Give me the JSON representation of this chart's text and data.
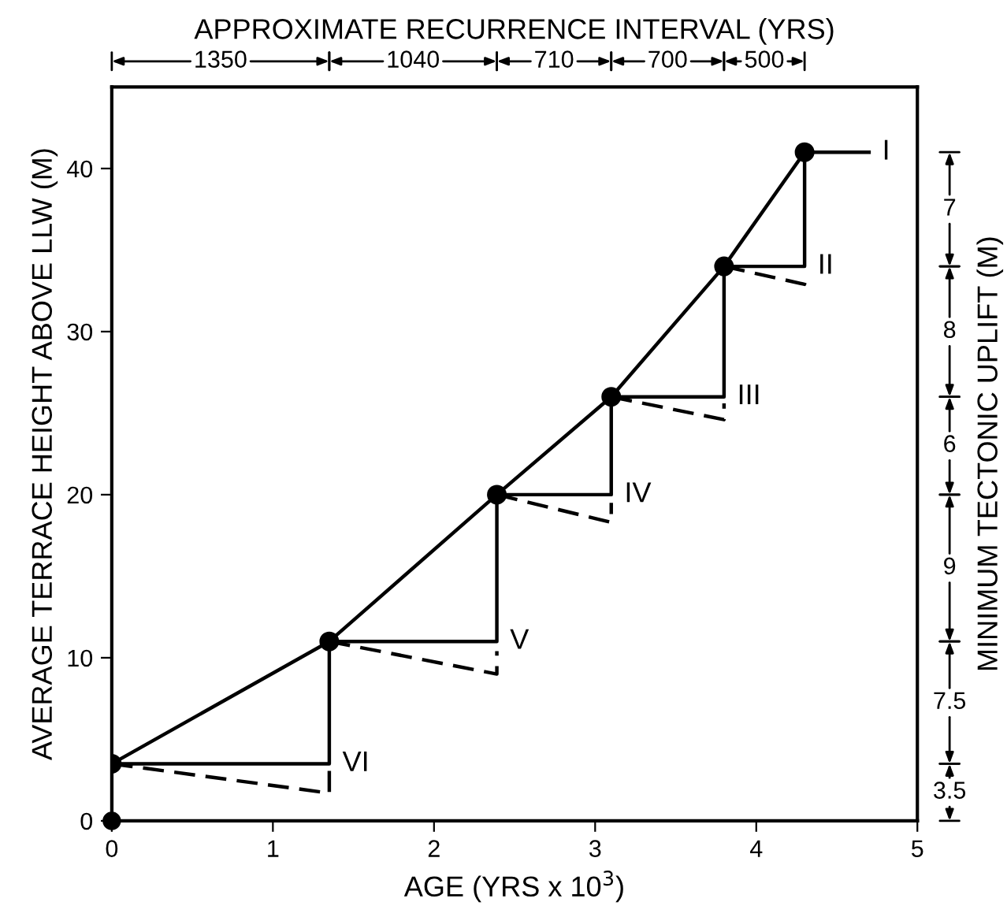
{
  "chart_data": {
    "type": "line",
    "xlabel": "AGE (YRS x 10$^{3}$)",
    "ylabel": "AVERAGE TERRACE HEIGHT ABOVE LLW (M)",
    "x2label": "APPROXIMATE RECURRENCE INTERVAL (YRS)",
    "y2label": "MINIMUM TECTONIC UPLIFT (M)",
    "xlim": [
      0,
      5
    ],
    "xticks": [
      0,
      1,
      2,
      3,
      4,
      5
    ],
    "ylim": [
      0,
      45
    ],
    "yticks": [
      0,
      10,
      20,
      30,
      40
    ],
    "series": [
      {
        "color": "#000000",
        "line_style": "solid",
        "marker": "circle",
        "x": [
          0,
          1.35,
          2.39,
          3.1,
          3.8,
          4.3
        ],
        "values": [
          3.5,
          11,
          20,
          26,
          34,
          41
        ]
      },
      {
        "type": "scatter",
        "color": "#000000",
        "marker": "circle",
        "x": [
          0
        ],
        "values": [
          0
        ]
      },
      {
        "color": "#000000",
        "line_style": "solid",
        "marker": "none",
        "x": [
          0,
          0,
          1.35,
          1.35,
          2.39,
          2.39,
          3.1,
          3.1,
          3.8,
          3.8,
          4.3,
          4.3,
          4.7
        ],
        "values": [
          0,
          3.5,
          3.5,
          11,
          11,
          20,
          20,
          26,
          26,
          34,
          34,
          41,
          41
        ]
      },
      {
        "color": "#000000",
        "line_style": "dashed",
        "marker": "none",
        "x": [
          0,
          1.35,
          1.35,
          null,
          1.35,
          2.39,
          2.39,
          null,
          2.39,
          3.1,
          3.1,
          null,
          3.1,
          3.8,
          3.8,
          null,
          3.8,
          4.3,
          4.3
        ],
        "values": [
          3.5,
          1.7,
          3.1,
          null,
          11,
          9.0,
          10.4,
          null,
          20,
          18.3,
          19.5,
          null,
          26,
          24.6,
          25.6,
          null,
          34,
          32.9,
          33.6
        ]
      }
    ],
    "annotations": [
      "I",
      "II",
      "III",
      "IV",
      "V",
      "VI",
      "1350",
      "1040",
      "710",
      "700",
      "500",
      "3.5",
      "7.5",
      "9",
      "6",
      "8",
      "7"
    ]
  }
}
